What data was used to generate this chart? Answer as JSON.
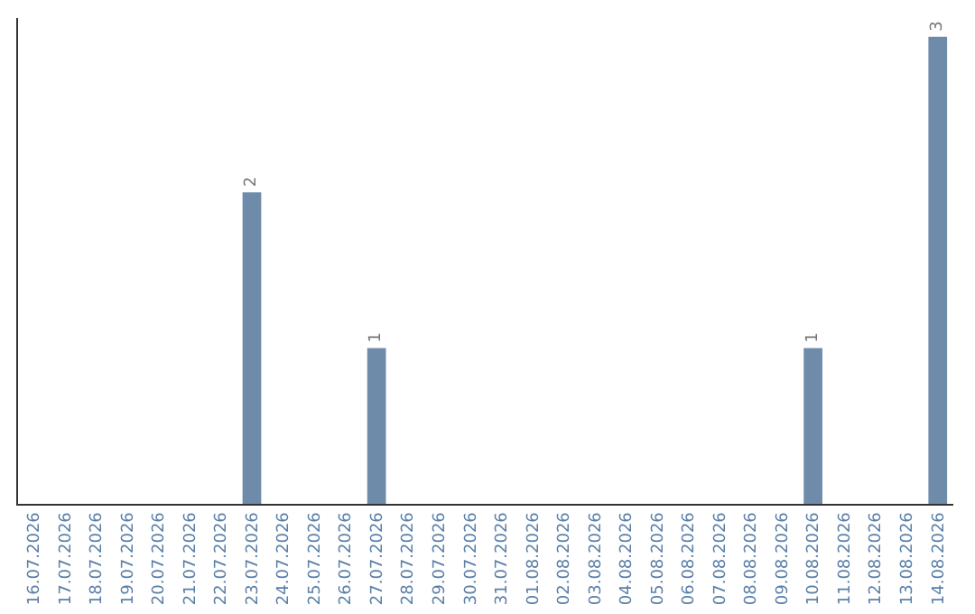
{
  "chart_data": {
    "type": "bar",
    "categories": [
      "16.07.2026",
      "17.07.2026",
      "18.07.2026",
      "19.07.2026",
      "20.07.2026",
      "21.07.2026",
      "22.07.2026",
      "23.07.2026",
      "24.07.2026",
      "25.07.2026",
      "26.07.2026",
      "27.07.2026",
      "28.07.2026",
      "29.07.2026",
      "30.07.2026",
      "31.07.2026",
      "01.08.2026",
      "02.08.2026",
      "03.08.2026",
      "04.08.2026",
      "05.08.2026",
      "06.08.2026",
      "07.08.2026",
      "08.08.2026",
      "09.08.2026",
      "10.08.2026",
      "11.08.2026",
      "12.08.2026",
      "13.08.2026",
      "14.08.2026"
    ],
    "values": [
      0,
      0,
      0,
      0,
      0,
      0,
      0,
      2,
      0,
      0,
      0,
      1,
      0,
      0,
      0,
      0,
      0,
      0,
      0,
      0,
      0,
      0,
      0,
      0,
      0,
      1,
      0,
      0,
      0,
      3
    ],
    "value_labels": [
      null,
      null,
      null,
      null,
      null,
      null,
      null,
      "2",
      null,
      null,
      null,
      "1",
      null,
      null,
      null,
      null,
      null,
      null,
      null,
      null,
      null,
      null,
      null,
      null,
      null,
      "1",
      null,
      null,
      null,
      "3"
    ],
    "color": "#6e8caa",
    "legend": false,
    "tick_labels": "x"
  }
}
